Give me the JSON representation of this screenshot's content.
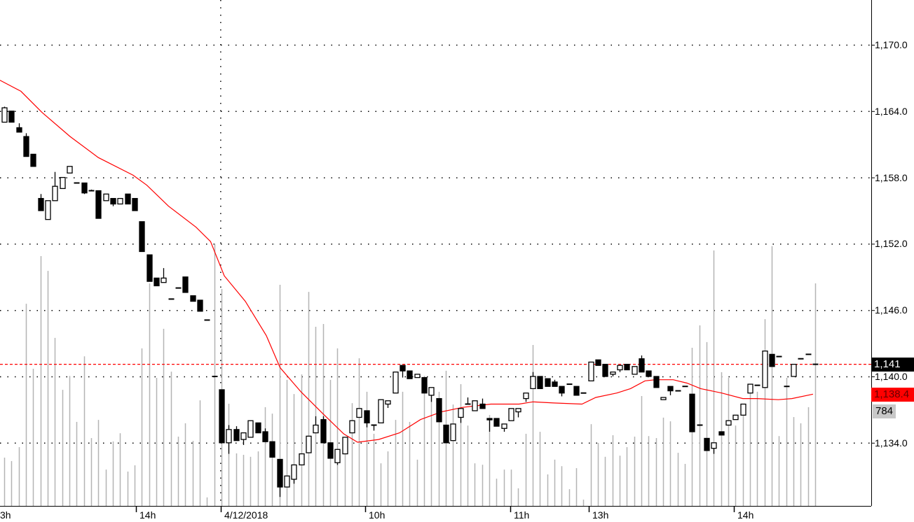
{
  "chart_data": {
    "type": "candlestick",
    "title": "",
    "ylim": [
      1128.4,
      1174
    ],
    "y_ticks": [
      1170,
      1164,
      1158,
      1152,
      1146,
      1140,
      1134
    ],
    "y_tick_labels": [
      "1,170.0",
      "1,164.0",
      "1,158.0",
      "1,152.0",
      "1,146.0",
      "1,140.0",
      "1,134.0"
    ],
    "x_tick_labels": [
      {
        "label": "3h",
        "bar": -0.5
      },
      {
        "label": "14h",
        "bar": 18.2
      },
      {
        "label": "4/12/2018",
        "bar": 29.9
      },
      {
        "label": "10h",
        "bar": 49.9
      },
      {
        "label": "11h",
        "bar": 69.9
      },
      {
        "label": "13h",
        "bar": 80.7
      },
      {
        "label": "14h",
        "bar": 100.8
      }
    ],
    "date_separator_bar": 29.9,
    "grid": "horizontal-dotted",
    "colors": {
      "up": "#ffffff",
      "down": "#000000",
      "ma": "#ff0000",
      "volume": "#b4b4b4",
      "last_price_line": "#ff0000"
    },
    "ohlc": [
      [
        1163.0,
        1164.4,
        1163.0,
        1164.3
      ],
      [
        1164.0,
        1164.0,
        1163.0,
        1163.0
      ],
      [
        1162.5,
        1162.9,
        1162.1,
        1162.1
      ],
      [
        1161.7,
        1162.0,
        1159.9,
        1159.9
      ],
      [
        1160.1,
        1160.1,
        1159.0,
        1159.0
      ],
      [
        1156.1,
        1156.5,
        1155.0,
        1155.0
      ],
      [
        1154.2,
        1155.9,
        1154.2,
        1155.9
      ],
      [
        1155.9,
        1158.5,
        1155.9,
        1157.2
      ],
      [
        1157.0,
        1158.0,
        1157.0,
        1158.0
      ],
      [
        1158.4,
        1159.0,
        1158.4,
        1159.0
      ],
      [
        1157.5,
        1157.5,
        1157.5,
        1157.5
      ],
      [
        1157.5,
        1157.5,
        1156.5,
        1156.6
      ],
      [
        1156.8,
        1156.9,
        1156.8,
        1156.8
      ],
      [
        1156.8,
        1156.8,
        1154.3,
        1154.3
      ],
      [
        1155.9,
        1156.5,
        1155.9,
        1156.5
      ],
      [
        1156.1,
        1156.1,
        1155.4,
        1155.6
      ],
      [
        1155.6,
        1156.1,
        1155.6,
        1156.1
      ],
      [
        1156.5,
        1156.5,
        1155.6,
        1155.6
      ],
      [
        1156.1,
        1156.1,
        1155.0,
        1155.0
      ],
      [
        1154.0,
        1154.0,
        1151.3,
        1151.3
      ],
      [
        1151.0,
        1151.0,
        1148.6,
        1148.6
      ],
      [
        1148.9,
        1148.9,
        1148.2,
        1148.2
      ],
      [
        1148.5,
        1149.8,
        1148.5,
        1148.9
      ],
      [
        1147.0,
        1147.0,
        1147.0,
        1147.0
      ],
      [
        1148.0,
        1148.0,
        1148.0,
        1148.0
      ],
      [
        1149.0,
        1149.0,
        1147.6,
        1147.6
      ],
      [
        1147.3,
        1147.3,
        1146.8,
        1146.8
      ],
      [
        1146.9,
        1146.9,
        1145.9,
        1145.9
      ],
      [
        1145.1,
        1145.1,
        1145.1,
        1145.1
      ],
      [
        1140.0,
        1140.0,
        1140.0,
        1140.0
      ],
      [
        1138.8,
        1138.8,
        1134.0,
        1134.0
      ],
      [
        1134.0,
        1135.6,
        1133.0,
        1135.2
      ],
      [
        1135.2,
        1135.5,
        1134.2,
        1134.2
      ],
      [
        1134.3,
        1134.9,
        1133.8,
        1134.9
      ],
      [
        1134.5,
        1136.0,
        1134.5,
        1136.0
      ],
      [
        1135.8,
        1135.8,
        1134.9,
        1134.9
      ],
      [
        1135.0,
        1135.3,
        1134.1,
        1134.1
      ],
      [
        1134.1,
        1134.1,
        1132.7,
        1132.7
      ],
      [
        1132.5,
        1132.5,
        1129.1,
        1130.0
      ],
      [
        1130.0,
        1131.0,
        1130.0,
        1131.0
      ],
      [
        1130.7,
        1132.0,
        1130.3,
        1132.0
      ],
      [
        1132.0,
        1133.0,
        1132.0,
        1133.0
      ],
      [
        1133.1,
        1134.6,
        1133.1,
        1134.6
      ],
      [
        1134.9,
        1136.4,
        1134.9,
        1135.6
      ],
      [
        1136.1,
        1136.4,
        1134.0,
        1134.0
      ],
      [
        1134.0,
        1134.0,
        1132.6,
        1132.6
      ],
      [
        1132.2,
        1133.4,
        1132.0,
        1133.4
      ],
      [
        1133.0,
        1134.5,
        1133.0,
        1134.5
      ],
      [
        1134.9,
        1136.0,
        1134.9,
        1136.0
      ],
      [
        1136.3,
        1137.1,
        1136.3,
        1137.1
      ],
      [
        1136.9,
        1136.9,
        1135.4,
        1135.8
      ],
      [
        1135.6,
        1135.6,
        1135.1,
        1135.6
      ],
      [
        1135.8,
        1137.9,
        1135.8,
        1137.9
      ],
      [
        1137.5,
        1137.8,
        1137.15,
        1137.8
      ],
      [
        1138.5,
        1140.4,
        1138.5,
        1140.4
      ],
      [
        1141.0,
        1141.0,
        1139.9,
        1140.5
      ],
      [
        1140.5,
        1140.5,
        1139.8,
        1139.8
      ],
      [
        1139.9,
        1140.2,
        1139.9,
        1140.2
      ],
      [
        1139.9,
        1139.9,
        1138.5,
        1138.5
      ],
      [
        1138.3,
        1139.0,
        1137.7,
        1139.0
      ],
      [
        1138.0,
        1138.0,
        1135.9,
        1135.9
      ],
      [
        1135.6,
        1135.6,
        1134.0,
        1134.0
      ],
      [
        1134.2,
        1135.7,
        1134.2,
        1135.7
      ],
      [
        1136.3,
        1137.1,
        1135.8,
        1137.1
      ],
      [
        1137.5,
        1138.1,
        1137.5,
        1137.5
      ],
      [
        1136.9,
        1137.8,
        1136.9,
        1137.8
      ],
      [
        1137.5,
        1138.0,
        1137.1,
        1137.1
      ],
      [
        1136.2,
        1136.2,
        1135.0,
        1136.1
      ],
      [
        1136.2,
        1136.2,
        1135.5,
        1135.5
      ],
      [
        1135.3,
        1135.7,
        1135.0,
        1135.7
      ],
      [
        1136.0,
        1137.1,
        1136.0,
        1137.1
      ],
      [
        1136.8,
        1137.1,
        1136.3,
        1137.1
      ],
      [
        1138.0,
        1138.5,
        1137.7,
        1138.5
      ],
      [
        1138.9,
        1140.4,
        1138.9,
        1140.0
      ],
      [
        1140.0,
        1140.0,
        1138.9,
        1138.9
      ],
      [
        1139.8,
        1139.8,
        1139.1,
        1139.1
      ],
      [
        1139.5,
        1139.7,
        1139.1,
        1139.1
      ],
      [
        1139.1,
        1139.1,
        1138.2,
        1138.5
      ],
      [
        1139.3,
        1139.3,
        1139.3,
        1139.3
      ],
      [
        1139.1,
        1139.1,
        1138.3,
        1138.3
      ],
      [
        1138.5,
        1138.5,
        1138.5,
        1138.5
      ],
      [
        1139.6,
        1141.3,
        1139.6,
        1141.3
      ],
      [
        1141.5,
        1141.5,
        1141.0,
        1141.0
      ],
      [
        1141.1,
        1141.1,
        1140.0,
        1140.0
      ],
      [
        1140.2,
        1140.4,
        1140.0,
        1140.4
      ],
      [
        1140.6,
        1141.0,
        1140.4,
        1141.0
      ],
      [
        1141.1,
        1141.1,
        1140.6,
        1140.6
      ],
      [
        1140.2,
        1140.9,
        1140.2,
        1140.9
      ],
      [
        1141.6,
        1141.9,
        1140.4,
        1140.4
      ],
      [
        1140.5,
        1140.5,
        1140.0,
        1140.0
      ],
      [
        1140.0,
        1140.0,
        1139.0,
        1139.0
      ],
      [
        1137.9,
        1138.1,
        1137.9,
        1138.1
      ],
      [
        1139.1,
        1139.1,
        1138.3,
        1138.7
      ],
      [
        1138.7,
        1138.7,
        1138.7,
        1138.7
      ],
      [
        1139.1,
        1139.1,
        1139.1,
        1139.1
      ],
      [
        1138.4,
        1138.4,
        1135.0,
        1135.0
      ],
      [
        1135.6,
        1135.6,
        1135.6,
        1135.6
      ],
      [
        1134.4,
        1134.4,
        1133.3,
        1133.3
      ],
      [
        1133.5,
        1134.0,
        1133.0,
        1134.0
      ],
      [
        1135.0,
        1135.0,
        1134.7,
        1134.7
      ],
      [
        1135.6,
        1136.0,
        1135.6,
        1136.0
      ],
      [
        1136.1,
        1136.5,
        1136.1,
        1136.5
      ],
      [
        1136.5,
        1137.5,
        1136.5,
        1137.5
      ],
      [
        1138.5,
        1139.3,
        1138.5,
        1139.3
      ],
      [
        1139.2,
        1139.2,
        1139.2,
        1139.2
      ],
      [
        1139.0,
        1142.3,
        1139.0,
        1142.3
      ],
      [
        1142.0,
        1142.0,
        1140.9,
        1140.9
      ],
      [
        1141.8,
        1141.8,
        1141.8,
        1141.8
      ],
      [
        1139.1,
        1139.1,
        1139.1,
        1139.1
      ],
      [
        1140.0,
        1141.1,
        1140.0,
        1141.1
      ],
      [
        1141.6,
        1141.6,
        1141.6,
        1141.6
      ],
      [
        1142.0,
        1142.0,
        1142.0,
        1142.0
      ],
      [
        1141.1,
        1141.1,
        1141.1,
        1141.1
      ]
    ],
    "volume": [
      170,
      158,
      207,
      712,
      483,
      880,
      828,
      592,
      409,
      458,
      296,
      527,
      239,
      303,
      128,
      227,
      256,
      121,
      143,
      555,
      784,
      451,
      624,
      473,
      244,
      291,
      229,
      372,
      30,
      924,
      764,
      360,
      185,
      180,
      173,
      192,
      348,
      325,
      779,
      444,
      394,
      463,
      754,
      631,
      641,
      444,
      555,
      222,
      362,
      520,
      402,
      254,
      150,
      192,
      303,
      402,
      296,
      163,
      458,
      394,
      402,
      476,
      357,
      429,
      283,
      150,
      145,
      320,
      96,
      128,
      128,
      62,
      254,
      567,
      261,
      111,
      163,
      140,
      59,
      133,
      22,
      288,
      222,
      173,
      249,
      177,
      207,
      244,
      387,
      246,
      239,
      311,
      298,
      187,
      148,
      557,
      636,
      577,
      900,
      471,
      451,
      283,
      340,
      426,
      402,
      658,
      915,
      246,
      451,
      313,
      291,
      348,
      784
    ],
    "ma_points": [
      [
        -0.6,
        1166.8
      ],
      [
        2.3,
        1165.8
      ],
      [
        5.2,
        1163.9
      ],
      [
        9.1,
        1161.7
      ],
      [
        13.0,
        1159.8
      ],
      [
        17.8,
        1158.2
      ],
      [
        19.7,
        1157.3
      ],
      [
        22.7,
        1155.4
      ],
      [
        26.5,
        1153.5
      ],
      [
        28.5,
        1152.2
      ],
      [
        30.4,
        1149.1
      ],
      [
        33.3,
        1146.8
      ],
      [
        36.2,
        1143.7
      ],
      [
        38.1,
        1140.8
      ],
      [
        41.0,
        1138.6
      ],
      [
        43.9,
        1136.7
      ],
      [
        46.9,
        1134.8
      ],
      [
        48.8,
        1134.05
      ],
      [
        51.7,
        1134.3
      ],
      [
        54.6,
        1134.9
      ],
      [
        57.5,
        1136.1
      ],
      [
        60.4,
        1136.8
      ],
      [
        63.3,
        1137.2
      ],
      [
        67.2,
        1137.5
      ],
      [
        71.1,
        1137.5
      ],
      [
        73.0,
        1137.7
      ],
      [
        75.9,
        1137.6
      ],
      [
        79.8,
        1137.5
      ],
      [
        81.7,
        1138.1
      ],
      [
        84.6,
        1138.5
      ],
      [
        86.5,
        1138.9
      ],
      [
        88.5,
        1139.6
      ],
      [
        89.9,
        1139.7
      ],
      [
        92.4,
        1139.7
      ],
      [
        94.3,
        1139.4
      ],
      [
        96.2,
        1138.9
      ],
      [
        99.1,
        1138.5
      ],
      [
        102.0,
        1138.0
      ],
      [
        104.0,
        1138.0
      ],
      [
        106.9,
        1137.9
      ],
      [
        108.8,
        1138.0
      ],
      [
        111.7,
        1138.4
      ]
    ],
    "last_price": 1141.1,
    "last_price_label": "1,141",
    "ma_label": "1,138.4",
    "volume_label": "784"
  }
}
